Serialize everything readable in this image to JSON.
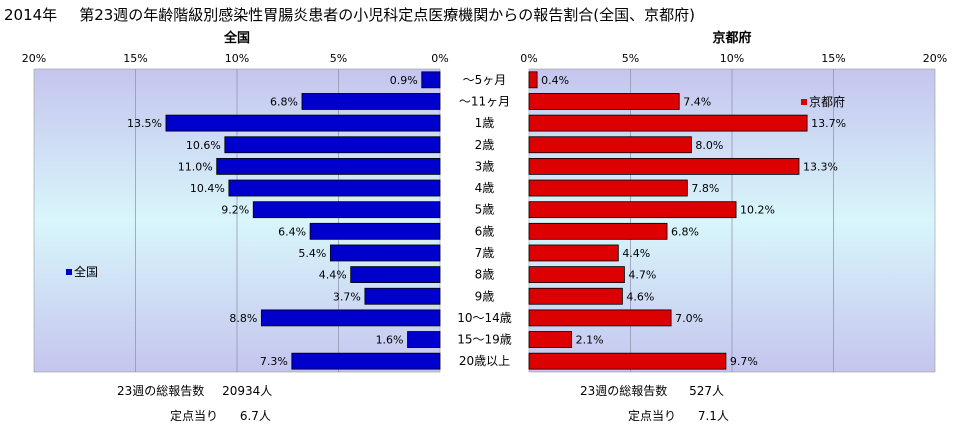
{
  "title": {
    "year": "2014年",
    "text": "第23週の年齢階級別感染性胃腸炎患者の小児科定点医療機関からの報告割合(全国、京都府)"
  },
  "colors": {
    "national": "#0000cc",
    "kyoto": "#dd0000",
    "plot_edge": "#c5c5ee",
    "plot_mid": "#d8f6fb"
  },
  "chart_data": [
    {
      "type": "bar",
      "orientation": "horizontal",
      "direction": "right-to-left",
      "title": "全国",
      "legend": "全国",
      "xlim": [
        0,
        20
      ],
      "ticks": [
        "20%",
        "15%",
        "10%",
        "5%",
        "0%"
      ],
      "tick_values": [
        20,
        15,
        10,
        5,
        0
      ],
      "categories": [
        "～5ヶ月",
        "～11ヶ月",
        "1歳",
        "2歳",
        "3歳",
        "4歳",
        "5歳",
        "6歳",
        "7歳",
        "8歳",
        "9歳",
        "10～14歳",
        "15～19歳",
        "20歳以上"
      ],
      "values": [
        0.9,
        6.8,
        13.5,
        10.6,
        11.0,
        10.4,
        9.2,
        6.4,
        5.4,
        4.4,
        3.7,
        8.8,
        1.6,
        7.3
      ],
      "labels": [
        "0.9%",
        "6.8%",
        "13.5%",
        "10.6%",
        "11.0%",
        "10.4%",
        "9.2%",
        "6.4%",
        "5.4%",
        "4.4%",
        "3.7%",
        "8.8%",
        "1.6%",
        "7.3%"
      ]
    },
    {
      "type": "bar",
      "orientation": "horizontal",
      "direction": "left-to-right",
      "title": "京都府",
      "legend": "京都府",
      "xlim": [
        0,
        20
      ],
      "ticks": [
        "0%",
        "5%",
        "10%",
        "15%",
        "20%"
      ],
      "tick_values": [
        0,
        5,
        10,
        15,
        20
      ],
      "categories": [
        "～5ヶ月",
        "～11ヶ月",
        "1歳",
        "2歳",
        "3歳",
        "4歳",
        "5歳",
        "6歳",
        "7歳",
        "8歳",
        "9歳",
        "10～14歳",
        "15～19歳",
        "20歳以上"
      ],
      "values": [
        0.4,
        7.4,
        13.7,
        8.0,
        13.3,
        7.8,
        10.2,
        6.8,
        4.4,
        4.7,
        4.6,
        7.0,
        2.1,
        9.7
      ],
      "labels": [
        "0.4%",
        "7.4%",
        "13.7%",
        "8.0%",
        "13.3%",
        "7.8%",
        "10.2%",
        "6.8%",
        "4.4%",
        "4.7%",
        "4.6%",
        "7.0%",
        "2.1%",
        "9.7%"
      ]
    }
  ],
  "footer": {
    "national": {
      "total_label": "23週の総報告数",
      "total_value": "20934人",
      "per_label": "定点当り",
      "per_value": "6.7人"
    },
    "kyoto": {
      "total_label": "23週の総報告数",
      "total_value": "527人",
      "per_label": "定点当り",
      "per_value": "7.1人"
    }
  }
}
